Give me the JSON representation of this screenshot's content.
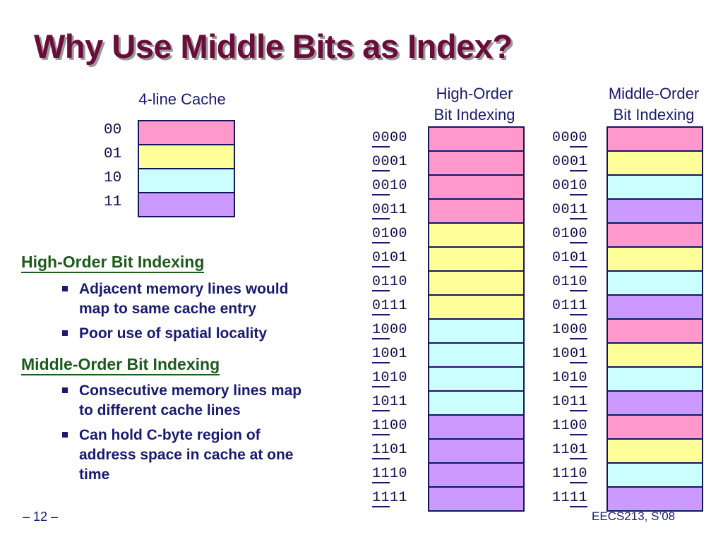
{
  "title": "Why Use Middle Bits as Index?",
  "cache": {
    "caption": "4-line Cache",
    "lines": [
      {
        "label": "00",
        "color": "#ff99cc"
      },
      {
        "label": "01",
        "color": "#ffff99"
      },
      {
        "label": "10",
        "color": "#ccffff"
      },
      {
        "label": "11",
        "color": "#cc99ff"
      }
    ]
  },
  "sections": [
    {
      "heading": "High-Order Bit Indexing",
      "bullets": [
        [
          "Adjacent memory lines would",
          "map to same cache entry"
        ],
        [
          "Poor use of spatial locality"
        ]
      ]
    },
    {
      "heading": "Middle-Order Bit Indexing",
      "bullets": [
        [
          "Consecutive memory lines map",
          "to different cache lines"
        ],
        [
          "Can hold C-byte region of",
          "address space in cache at one",
          "time"
        ]
      ]
    }
  ],
  "columns": {
    "high": {
      "title": [
        "High-Order",
        "Bit Indexing"
      ]
    },
    "middle": {
      "title": [
        "Middle-Order",
        "Bit Indexing"
      ]
    }
  },
  "addresses": [
    "0000",
    "0001",
    "0010",
    "0011",
    "0100",
    "0101",
    "0110",
    "0111",
    "1000",
    "1001",
    "1010",
    "1011",
    "1100",
    "1101",
    "1110",
    "1111"
  ],
  "footer": {
    "left": "– 12 –",
    "right": "EECS213, S’08"
  }
}
